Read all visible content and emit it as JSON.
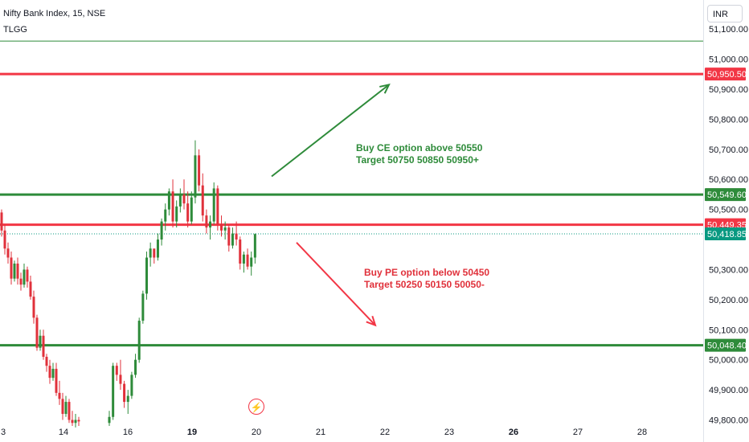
{
  "header": {
    "symbol": "Nifty Bank Index, 15, NSE",
    "indicator": "TLGG"
  },
  "currency": "INR",
  "colors": {
    "up": "#2e8b3a",
    "down": "#e0313b",
    "green_line": "#2e8b3a",
    "red_line": "#f23645",
    "last_price": "#089981"
  },
  "notes": {
    "buy_ce": {
      "line1": "Buy CE option above 50550",
      "line2": "Target 50750 50850 50950+"
    },
    "buy_pe": {
      "line1": "Buy PE option below 50450",
      "line2": "Target 50250 50150 50050-"
    }
  },
  "chart_data": {
    "type": "candlestick",
    "ylim": [
      49780,
      51170
    ],
    "y_ticks": [
      51100,
      51000,
      50900,
      50800,
      50700,
      50600,
      50500,
      50300,
      50200,
      50100,
      50000,
      49900,
      49800
    ],
    "y_tick_labels": [
      "51,100.00",
      "51,000.00",
      "50,900.00",
      "50,800.00",
      "50,700.00",
      "50,600.00",
      "50,500.00",
      "50,300.00",
      "50,200.00",
      "50,100.00",
      "50,000.00",
      "49,900.00",
      "49,800.00"
    ],
    "x_ticks": [
      "3",
      "14",
      "16",
      "19",
      "20",
      "21",
      "22",
      "23",
      "26",
      "27",
      "28"
    ],
    "x_ticks_bold": [
      "19",
      "26"
    ],
    "horizontal_levels": [
      {
        "value": 51060,
        "label": "",
        "kind": "thin-green"
      },
      {
        "value": 50950.5,
        "label": "50,950.50",
        "kind": "red"
      },
      {
        "value": 50549.6,
        "label": "50,549.60",
        "kind": "green"
      },
      {
        "value": 50449.35,
        "label": "50,449.35",
        "kind": "red"
      },
      {
        "value": 50418.85,
        "label": "50,418.85",
        "kind": "last-price"
      },
      {
        "value": 50048.4,
        "label": "50,048.40",
        "kind": "green"
      }
    ],
    "arrows": [
      {
        "from": [
          "19.8",
          50610
        ],
        "to": [
          "22.0",
          50915
        ],
        "color": "green"
      },
      {
        "from": [
          "19.8",
          50390
        ],
        "to": [
          "21.9",
          50115
        ],
        "color": "red"
      }
    ],
    "candles": [
      [
        50490,
        50500,
        50410,
        50430
      ],
      [
        50430,
        50450,
        50350,
        50370
      ],
      [
        50370,
        50390,
        50320,
        50340
      ],
      [
        50340,
        50360,
        50250,
        50270
      ],
      [
        50270,
        50330,
        50260,
        50320
      ],
      [
        50320,
        50340,
        50250,
        50270
      ],
      [
        50270,
        50290,
        50230,
        50250
      ],
      [
        50250,
        50320,
        50240,
        50300
      ],
      [
        50300,
        50310,
        50240,
        50260
      ],
      [
        50260,
        50280,
        50200,
        50210
      ],
      [
        50210,
        50230,
        50120,
        50140
      ],
      [
        50140,
        50150,
        50030,
        50040
      ],
      [
        50040,
        50100,
        50030,
        50080
      ],
      [
        50080,
        50100,
        50000,
        50010
      ],
      [
        50010,
        50020,
        49960,
        49980
      ],
      [
        49980,
        50000,
        49920,
        49940
      ],
      [
        49940,
        49990,
        49930,
        49970
      ],
      [
        49970,
        49990,
        49880,
        49890
      ],
      [
        49890,
        49930,
        49850,
        49870
      ],
      [
        49870,
        49890,
        49800,
        49820
      ],
      [
        49820,
        49880,
        49810,
        49860
      ],
      [
        49860,
        49870,
        49790,
        49800
      ],
      [
        49800,
        49830,
        49780,
        49790
      ],
      [
        49790,
        49820,
        49775,
        49800
      ],
      [
        49800,
        49810,
        49780,
        49795
      ],
      [
        49790,
        49830,
        49780,
        49810
      ],
      [
        49810,
        49990,
        49800,
        49980
      ],
      [
        49980,
        49990,
        49930,
        49950
      ],
      [
        49950,
        50000,
        49900,
        49920
      ],
      [
        49920,
        49930,
        49840,
        49860
      ],
      [
        49860,
        49900,
        49820,
        49880
      ],
      [
        49880,
        49960,
        49870,
        49950
      ],
      [
        49950,
        50020,
        49940,
        50000
      ],
      [
        50000,
        50140,
        49990,
        50130
      ],
      [
        50130,
        50230,
        50120,
        50220
      ],
      [
        50220,
        50360,
        50200,
        50340
      ],
      [
        50340,
        50390,
        50310,
        50370
      ],
      [
        50370,
        50360,
        50320,
        50340
      ],
      [
        50340,
        50420,
        50330,
        50400
      ],
      [
        50400,
        50470,
        50380,
        50460
      ],
      [
        50460,
        50520,
        50430,
        50500
      ],
      [
        50500,
        50570,
        50480,
        50560
      ],
      [
        50560,
        50600,
        50440,
        50460
      ],
      [
        50460,
        50530,
        50440,
        50510
      ],
      [
        50510,
        50570,
        50490,
        50550
      ],
      [
        50550,
        50600,
        50500,
        50520
      ],
      [
        50520,
        50560,
        50440,
        50460
      ],
      [
        50460,
        50560,
        50450,
        50540
      ],
      [
        50540,
        50730,
        50520,
        50680
      ],
      [
        50680,
        50700,
        50560,
        50580
      ],
      [
        50580,
        50620,
        50460,
        50480
      ],
      [
        50480,
        50500,
        50420,
        50440
      ],
      [
        50440,
        50480,
        50400,
        50460
      ],
      [
        50460,
        50590,
        50450,
        50570
      ],
      [
        50570,
        50580,
        50430,
        50450
      ],
      [
        50450,
        50480,
        50410,
        50430
      ],
      [
        50430,
        50460,
        50400,
        50440
      ],
      [
        50440,
        50450,
        50360,
        50380
      ],
      [
        50380,
        50440,
        50370,
        50420
      ],
      [
        50420,
        50460,
        50380,
        50400
      ],
      [
        50400,
        50410,
        50300,
        50320
      ],
      [
        50320,
        50360,
        50290,
        50350
      ],
      [
        50350,
        50370,
        50300,
        50310
      ],
      [
        50310,
        50360,
        50280,
        50340
      ],
      [
        50340,
        50420,
        50320,
        50418
      ]
    ]
  }
}
